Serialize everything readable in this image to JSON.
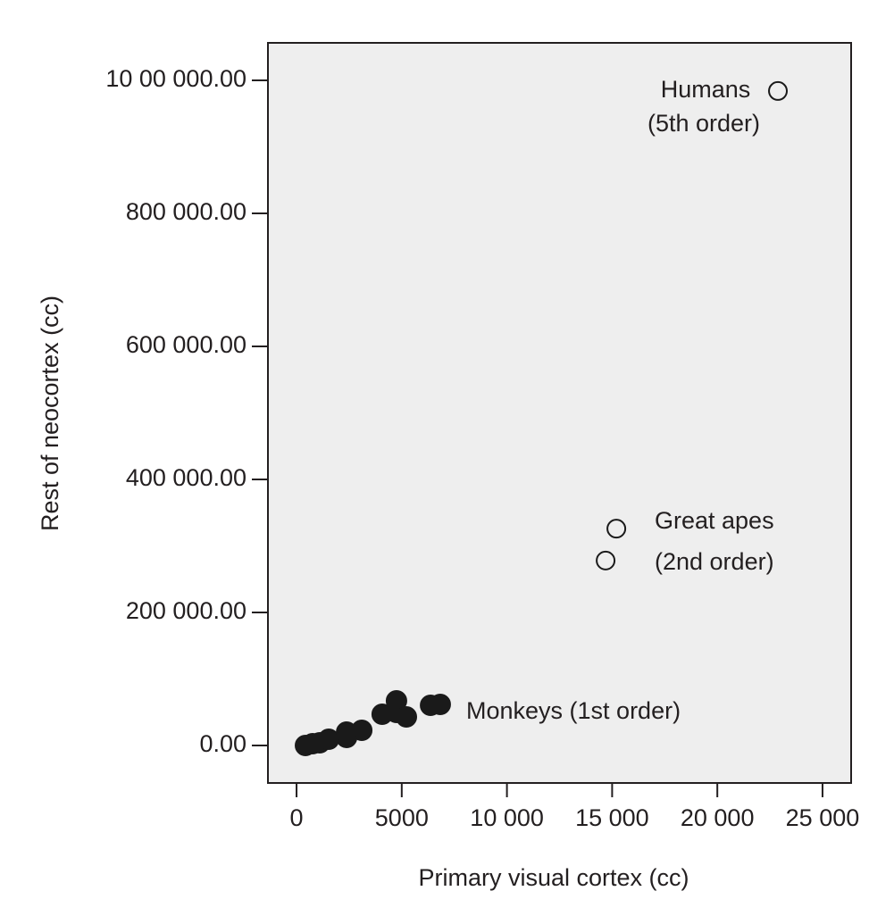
{
  "chart_data": {
    "type": "scatter",
    "x_label": "Primary visual cortex (cc)",
    "y_label": "Rest of neocortex (cc)",
    "xlim": [
      -1360,
      26360
    ],
    "ylim": [
      -56400,
      1056400
    ],
    "xticks": [
      0,
      5000,
      {
        "value": 10000,
        "label": "10 000"
      },
      {
        "value": 15000,
        "label": "15 000"
      },
      {
        "value": 20000,
        "label": "20 000"
      },
      {
        "value": 25000,
        "label": "25 000"
      }
    ],
    "yticks": [
      {
        "value": 0,
        "label": "0.00"
      },
      {
        "value": 200000,
        "label": "200 000.00"
      },
      {
        "value": 400000,
        "label": "400 000.00"
      },
      {
        "value": 600000,
        "label": "600 000.00"
      },
      {
        "value": 800000,
        "label": "800 000.00"
      },
      {
        "value": 1000000,
        "label": "10 00 000.00"
      }
    ],
    "background": "#eeeeee",
    "series": [
      {
        "color": "#1a1a1a",
        "filled": true,
        "x": [
          424,
          764,
          1100,
          1530,
          2380,
          2380,
          3100,
          4070,
          4750,
          4750,
          5220,
          6370,
          6830
        ],
        "values": [
          0,
          2700,
          4000,
          9400,
          20100,
          12100,
          22800,
          47000,
          67100,
          49600,
          42900,
          60400,
          61700
        ]
      },
      {
        "color": "#1a1a1a",
        "filled": false,
        "x": [
          22880,
          15200,
          14690
        ],
        "values": [
          984000,
          326000,
          278000
        ]
      }
    ],
    "annotations": [
      "Humans",
      "(5th order)",
      "Great apes",
      "(2nd order)",
      "Monkeys (1st order)"
    ]
  }
}
